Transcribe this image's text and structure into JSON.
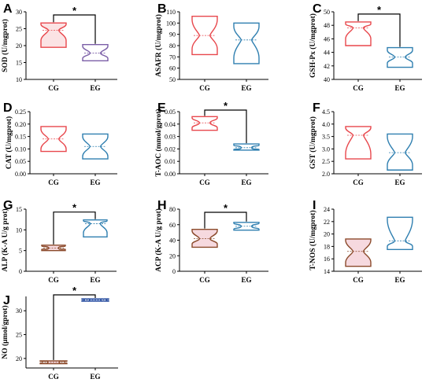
{
  "chart_data": [
    {
      "type": "violin",
      "label": "A",
      "ylabel": "SOD (U/mgprot)",
      "ylim": [
        10,
        30
      ],
      "ticks": [
        10,
        15,
        20,
        25,
        30
      ],
      "categories": [
        "CG",
        "EG"
      ],
      "significance": "*",
      "series": [
        {
          "name": "CG",
          "color": "#e8474c",
          "fill": "#fbe3e4",
          "min": 19.5,
          "max": 26.7,
          "q1": 21.5,
          "median": 24.5,
          "q3": 26.3
        },
        {
          "name": "EG",
          "color": "#7b5ea7",
          "fill": "#ffffff",
          "min": 15.5,
          "max": 20.3,
          "q1": 16.2,
          "median": 17.8,
          "q3": 19.8
        }
      ]
    },
    {
      "type": "violin",
      "label": "B",
      "ylabel": "ASAFR (U/mgprot)",
      "ylim": [
        50,
        110
      ],
      "ticks": [
        50,
        60,
        70,
        80,
        90,
        100,
        110
      ],
      "categories": [
        "CG",
        "EG"
      ],
      "significance": "",
      "series": [
        {
          "name": "CG",
          "color": "#e8474c",
          "fill": "#ffffff",
          "min": 72,
          "max": 106,
          "q1": 77,
          "median": 89,
          "q3": 103
        },
        {
          "name": "EG",
          "color": "#2f7fb0",
          "fill": "#ffffff",
          "min": 64,
          "max": 100,
          "q1": 69,
          "median": 85,
          "q3": 97
        }
      ]
    },
    {
      "type": "violin",
      "label": "C",
      "ylabel": "GSH-Px (U/mgprot)",
      "ylim": [
        40,
        50
      ],
      "ticks": [
        40,
        42,
        44,
        46,
        48,
        50
      ],
      "categories": [
        "CG",
        "EG"
      ],
      "significance": "*",
      "series": [
        {
          "name": "CG",
          "color": "#e8474c",
          "fill": "#ffffff",
          "min": 45.0,
          "max": 48.5,
          "q1": 46.0,
          "median": 47.6,
          "q3": 48.2
        },
        {
          "name": "EG",
          "color": "#2f7fb0",
          "fill": "#ffffff",
          "min": 41.8,
          "max": 44.7,
          "q1": 42.4,
          "median": 43.3,
          "q3": 44.3
        }
      ]
    },
    {
      "type": "violin",
      "label": "D",
      "ylabel": "CAT (U/mgprot)",
      "ylim": [
        0.0,
        0.25
      ],
      "ticks": [
        "0.00",
        "0.05",
        "0.10",
        "0.15",
        "0.20",
        "0.25"
      ],
      "categories": [
        "CG",
        "EG"
      ],
      "significance": "",
      "series": [
        {
          "name": "CG",
          "color": "#e8474c",
          "fill": "#ffffff",
          "min": 0.09,
          "max": 0.19,
          "q1": 0.1,
          "median": 0.14,
          "q3": 0.18
        },
        {
          "name": "EG",
          "color": "#2f7fb0",
          "fill": "#ffffff",
          "min": 0.06,
          "max": 0.16,
          "q1": 0.07,
          "median": 0.11,
          "q3": 0.15
        }
      ]
    },
    {
      "type": "violin",
      "label": "E",
      "ylabel": "T-AOC (mmol/gprot)",
      "ylim": [
        0.0,
        0.05
      ],
      "ticks": [
        "0.00",
        "0.01",
        "0.02",
        "0.03",
        "0.04",
        "0.05"
      ],
      "categories": [
        "CG",
        "EG"
      ],
      "significance": "*",
      "series": [
        {
          "name": "CG",
          "color": "#e8474c",
          "fill": "#ffffff",
          "min": 0.035,
          "max": 0.046,
          "q1": 0.037,
          "median": 0.041,
          "q3": 0.045
        },
        {
          "name": "EG",
          "color": "#2f7fb0",
          "fill": "#ffffff",
          "min": 0.019,
          "max": 0.024,
          "q1": 0.0195,
          "median": 0.021,
          "q3": 0.023
        }
      ]
    },
    {
      "type": "violin",
      "label": "F",
      "ylabel": "GST (U/mgprot)",
      "ylim": [
        2.0,
        4.5
      ],
      "ticks": [
        "2.0",
        "2.5",
        "3.0",
        "3.5",
        "4.0",
        "4.5"
      ],
      "categories": [
        "CG",
        "EG"
      ],
      "significance": "",
      "series": [
        {
          "name": "CG",
          "color": "#e8474c",
          "fill": "#ffffff",
          "min": 2.6,
          "max": 3.9,
          "q1": 2.8,
          "median": 3.55,
          "q3": 3.85
        },
        {
          "name": "EG",
          "color": "#2f7fb0",
          "fill": "#ffffff",
          "min": 2.15,
          "max": 3.6,
          "q1": 2.35,
          "median": 2.85,
          "q3": 3.5
        }
      ]
    },
    {
      "type": "violin",
      "label": "G",
      "ylabel": "ALP (K-A U/g prot)",
      "ylim": [
        0,
        15
      ],
      "ticks": [
        0,
        5,
        10,
        15
      ],
      "categories": [
        "CG",
        "EG"
      ],
      "significance": "*",
      "series": [
        {
          "name": "CG",
          "color": "#8b4a2b",
          "fill": "#f6d9df",
          "min": 5.0,
          "max": 6.3,
          "q1": 5.3,
          "median": 5.6,
          "q3": 6.1
        },
        {
          "name": "EG",
          "color": "#2f7fb0",
          "fill": "#ffffff",
          "min": 8.3,
          "max": 12.4,
          "q1": 9.3,
          "median": 11.5,
          "q3": 12.2
        }
      ]
    },
    {
      "type": "violin",
      "label": "H",
      "ylabel": "ACP (K-A U/g prot)",
      "ylim": [
        0,
        80
      ],
      "ticks": [
        0,
        20,
        40,
        60,
        80
      ],
      "categories": [
        "CG",
        "EG"
      ],
      "significance": "*",
      "series": [
        {
          "name": "CG",
          "color": "#8b4a2b",
          "fill": "#f6d9df",
          "min": 31,
          "max": 54,
          "q1": 35,
          "median": 42,
          "q3": 52
        },
        {
          "name": "EG",
          "color": "#2f7fb0",
          "fill": "#ffffff",
          "min": 53,
          "max": 63,
          "q1": 54,
          "median": 58,
          "q3": 62
        }
      ]
    },
    {
      "type": "violin",
      "label": "I",
      "ylabel": "T-NOS (U/mgprot)",
      "ylim": [
        14,
        24
      ],
      "ticks": [
        14,
        16,
        18,
        20,
        22,
        24
      ],
      "categories": [
        "CG",
        "EG"
      ],
      "significance": "",
      "series": [
        {
          "name": "CG",
          "color": "#8b4a2b",
          "fill": "#f6d9df",
          "min": 14.8,
          "max": 19.2,
          "q1": 15.4,
          "median": 17.2,
          "q3": 19.0
        },
        {
          "name": "EG",
          "color": "#2f7fb0",
          "fill": "#ffffff",
          "min": 17.5,
          "max": 22.7,
          "q1": 18.0,
          "median": 18.9,
          "q3": 22.3
        }
      ]
    },
    {
      "type": "violin",
      "label": "J",
      "ylabel": "NO (μmol/gprot)",
      "ylim": [
        18,
        33
      ],
      "ticks": [
        20,
        25,
        30
      ],
      "categories": [
        "CG",
        "EG"
      ],
      "significance": "*",
      "series": [
        {
          "name": "CG",
          "color": "#8b4a2b",
          "fill": "#f6d9df",
          "min": 18.9,
          "max": 19.5,
          "q1": 19.0,
          "median": 19.2,
          "q3": 19.4
        },
        {
          "name": "EG",
          "color": "#2a4fa0",
          "fill": "#b9c9ea",
          "min": 32.0,
          "max": 32.5,
          "q1": 32.1,
          "median": 32.25,
          "q3": 32.4
        }
      ]
    }
  ]
}
